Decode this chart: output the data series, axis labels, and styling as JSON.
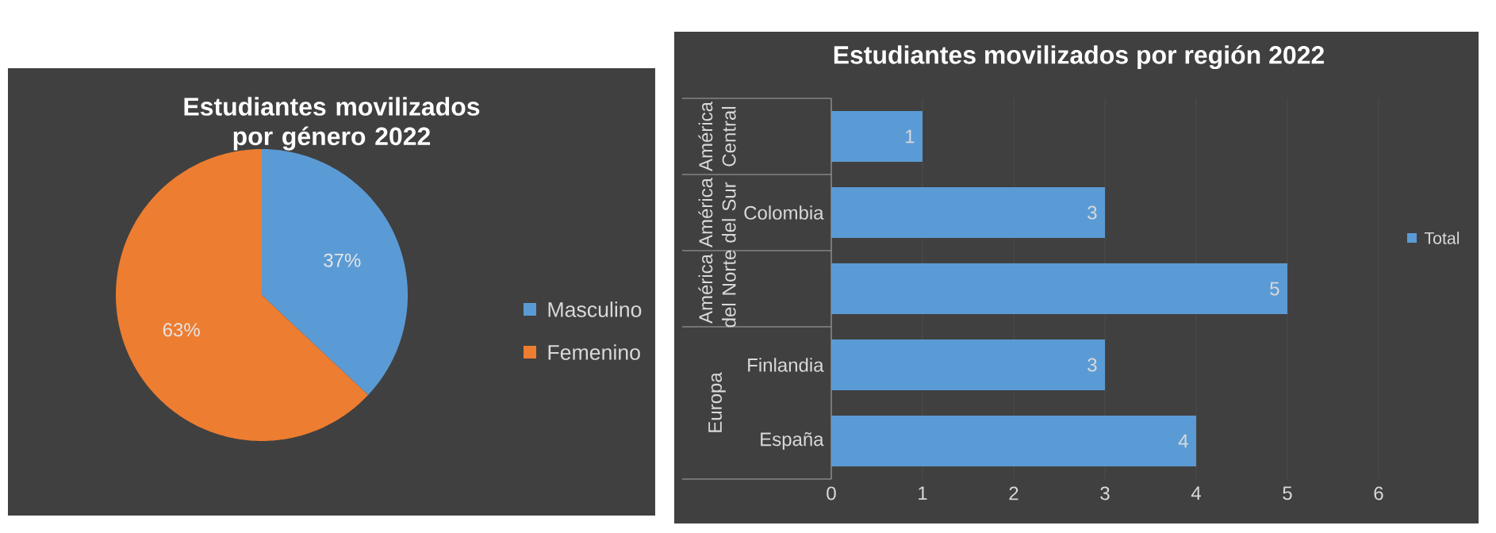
{
  "chart_data": [
    {
      "type": "pie",
      "title": "Estudiantes movilizados por género 2022",
      "categories": [
        "Masculino",
        "Femenino"
      ],
      "values": [
        37,
        63
      ],
      "colors": [
        "#5b9bd5",
        "#ed7d31"
      ],
      "value_labels": [
        "37%",
        "63%"
      ],
      "legend": "right"
    },
    {
      "type": "bar",
      "orientation": "horizontal",
      "title": "Estudiantes movilizados por región 2022",
      "categories": [
        null,
        "Colombia",
        null,
        "Finlandia",
        "España"
      ],
      "series": [
        {
          "name": "Total",
          "color": "#5b9bd5",
          "values": [
            1,
            3,
            5,
            3,
            4
          ]
        }
      ],
      "xlim": [
        0,
        6
      ],
      "xticks": [
        0,
        1,
        2,
        3,
        4,
        5,
        6
      ],
      "grid": "x",
      "legend": "right",
      "data_labels": true,
      "annotations": [
        "América Central",
        "América del Sur",
        "América del Norte",
        "Europa"
      ]
    }
  ]
}
